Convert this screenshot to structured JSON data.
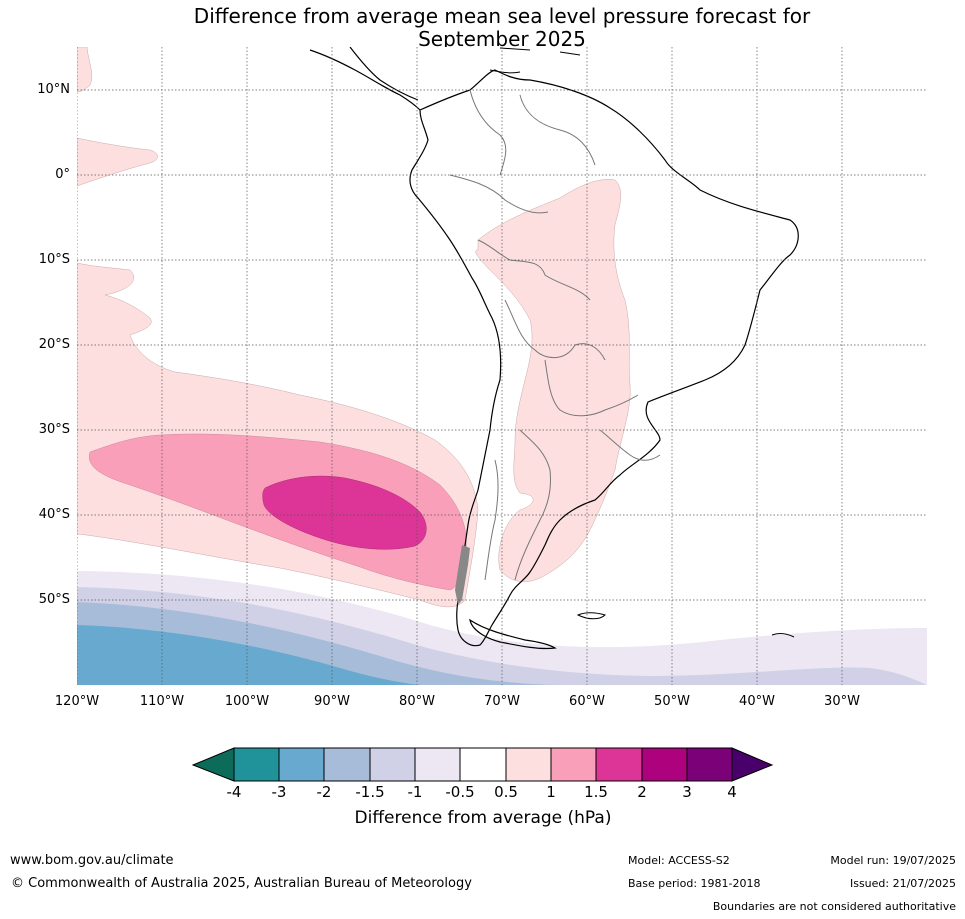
{
  "title_line1": "Difference from average mean sea level pressure forecast for",
  "title_line2": "September 2025",
  "map": {
    "lat_labels": [
      {
        "key": "10N",
        "text": "10°N"
      },
      {
        "key": "0",
        "text": "0°"
      },
      {
        "key": "10S",
        "text": "10°S"
      },
      {
        "key": "20S",
        "text": "20°S"
      },
      {
        "key": "30S",
        "text": "30°S"
      },
      {
        "key": "40S",
        "text": "40°S"
      },
      {
        "key": "50S",
        "text": "50°S"
      }
    ],
    "lon_labels": [
      "120°W",
      "110°W",
      "100°W",
      "90°W",
      "80°W",
      "70°W",
      "60°W",
      "50°W",
      "40°W",
      "30°W"
    ]
  },
  "colorbar": {
    "label": "Difference from average (hPa)",
    "ticks": [
      "-4",
      "-3",
      "-2",
      "-1.5",
      "-1",
      "-0.5",
      "0.5",
      "1",
      "1.5",
      "2",
      "3",
      "4"
    ],
    "colors": {
      "below_-4": "#0d6b5a",
      "-4_-3": "#20939a",
      "-3_-2": "#67a9cf",
      "-2_-1.5": "#a6bcd9",
      "-1.5_-1": "#d0d1e6",
      "-1_-0.5": "#ece7f2",
      "-0.5_0.5": "#ffffff",
      "0.5_1": "#fddfdf",
      "1_1.5": "#f99fb9",
      "1.5_2": "#dd3497",
      "2_3": "#ae017e",
      "3_4": "#7a0177",
      "above_4": "#49006a"
    }
  },
  "footer": {
    "website": "www.bom.gov.au/climate",
    "copyright": "© Commonwealth of Australia 2025, Australian Bureau of Meteorology",
    "model": "Model: ACCESS-S2",
    "base_period": "Base period: 1981-2018",
    "model_run": "Model run: 19/07/2025",
    "issued": "Issued: 21/07/2025",
    "disclaimer": "Boundaries are not considered authoritative"
  }
}
